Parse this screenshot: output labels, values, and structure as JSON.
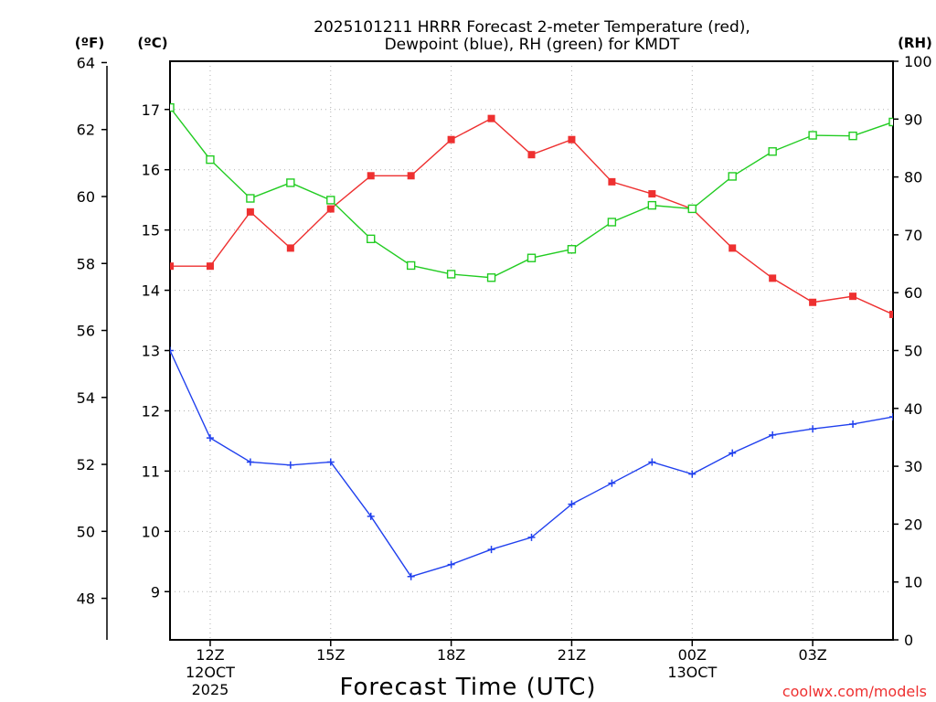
{
  "chart_data": {
    "type": "line",
    "title_line1": "2025101211 HRRR Forecast 2-meter Temperature (red),",
    "title_line2": "Dewpoint (blue), RH (green) for KMDT",
    "xlabel": "Forecast Time (UTC)",
    "units": {
      "fahrenheit": "(ºF)",
      "celsius": "(ºC)",
      "rh": "(RH)"
    },
    "watermark": "coolwx.com/models",
    "x_hours": [
      11,
      12,
      13,
      14,
      15,
      16,
      17,
      18,
      19,
      20,
      21,
      22,
      23,
      24,
      25,
      26,
      27,
      28,
      29
    ],
    "x_range_hours": [
      11,
      29
    ],
    "x_ticks": [
      {
        "hour": 12,
        "label": "12Z",
        "sub1": "12OCT",
        "sub2": "2025"
      },
      {
        "hour": 15,
        "label": "15Z",
        "sub1": "",
        "sub2": ""
      },
      {
        "hour": 18,
        "label": "18Z",
        "sub1": "",
        "sub2": ""
      },
      {
        "hour": 21,
        "label": "21Z",
        "sub1": "",
        "sub2": ""
      },
      {
        "hour": 24,
        "label": "00Z",
        "sub1": "13OCT",
        "sub2": ""
      },
      {
        "hour": 27,
        "label": "03Z",
        "sub1": "",
        "sub2": ""
      }
    ],
    "celsius_range": [
      8.2,
      17.8
    ],
    "celsius_ticks": [
      "9",
      "10",
      "11",
      "12",
      "13",
      "14",
      "15",
      "16",
      "17"
    ],
    "fahrenheit_ticks": [
      "48",
      "50",
      "52",
      "54",
      "56",
      "58",
      "60",
      "62",
      "64"
    ],
    "rh_range": [
      0,
      100
    ],
    "rh_ticks": [
      "0",
      "10",
      "20",
      "30",
      "40",
      "50",
      "60",
      "70",
      "80",
      "90",
      "100"
    ],
    "series": [
      {
        "name": "Temperature",
        "unit": "C",
        "color": "#ee3030",
        "marker": "filled-square",
        "values": [
          14.4,
          14.4,
          15.3,
          14.7,
          15.35,
          15.9,
          15.9,
          16.5,
          16.85,
          16.25,
          16.5,
          15.8,
          15.6,
          15.35,
          14.7,
          14.2,
          13.8,
          13.9,
          13.6
        ]
      },
      {
        "name": "Dewpoint",
        "unit": "C",
        "color": "#2040ee",
        "marker": "plus",
        "values": [
          13.0,
          11.55,
          11.15,
          11.1,
          11.15,
          10.25,
          9.25,
          9.45,
          9.7,
          9.9,
          10.45,
          10.8,
          11.15,
          10.95,
          11.3,
          11.6,
          11.7,
          11.78,
          11.9
        ]
      },
      {
        "name": "RH",
        "unit": "%",
        "color": "#22cc22",
        "marker": "open-square",
        "values": [
          92,
          83,
          76.3,
          79,
          76,
          69.3,
          64.7,
          63.2,
          62.6,
          66,
          67.5,
          72.2,
          75.1,
          74.5,
          80.1,
          84.4,
          87.2,
          87.1,
          89.5
        ]
      }
    ]
  }
}
